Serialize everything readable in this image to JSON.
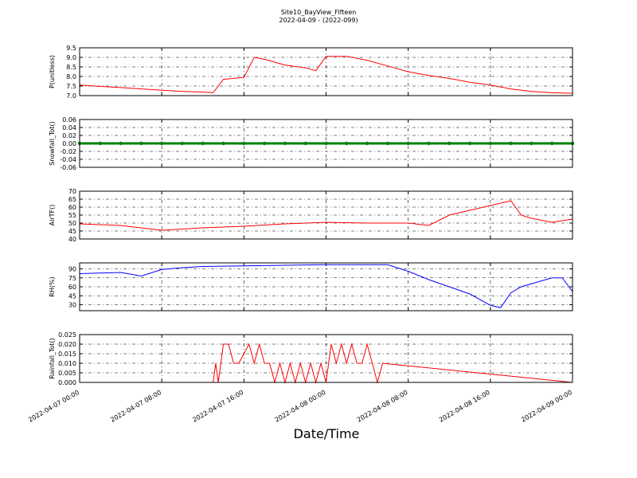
{
  "chart_data": [
    {
      "type": "line",
      "title": "Site10_BayView_Fifteen",
      "subtitle": "2022-04-09 - (2022-099)",
      "ylabel": "P(unitless)",
      "color": "#ff0000",
      "grid": true,
      "xticklabels": false,
      "xlim": [
        "2022-04-07 00:00",
        "2022-04-09 00:00"
      ],
      "xticks": [
        "2022-04-07 00:00",
        "2022-04-07 08:00",
        "2022-04-07 16:00",
        "2022-04-08 00:00",
        "2022-04-08 08:00",
        "2022-04-08 16:00",
        "2022-04-09 00:00"
      ],
      "ylim": [
        7.0,
        9.5
      ],
      "yticks": [
        {
          "value": 7.0,
          "label": "7.0"
        },
        {
          "value": 7.5,
          "label": "7.5"
        },
        {
          "value": 8.0,
          "label": "8.0"
        },
        {
          "value": 8.5,
          "label": "8.5"
        },
        {
          "value": 9.0,
          "label": "9.0"
        },
        {
          "value": 9.5,
          "label": "9.5"
        }
      ],
      "x": [
        "2022-04-07 00:00",
        "2022-04-07 02:00",
        "2022-04-07 04:00",
        "2022-04-07 06:00",
        "2022-04-07 08:00",
        "2022-04-07 10:00",
        "2022-04-07 12:00",
        "2022-04-07 13:00",
        "2022-04-07 14:00",
        "2022-04-07 16:00",
        "2022-04-07 17:00",
        "2022-04-07 18:00",
        "2022-04-07 20:00",
        "2022-04-07 22:00",
        "2022-04-07 23:00",
        "2022-04-08 00:00",
        "2022-04-08 02:00",
        "2022-04-08 04:00",
        "2022-04-08 06:00",
        "2022-04-08 08:00",
        "2022-04-08 10:00",
        "2022-04-08 12:00",
        "2022-04-08 14:00",
        "2022-04-08 16:00",
        "2022-04-08 18:00",
        "2022-04-08 20:00",
        "2022-04-08 22:00",
        "2022-04-09 00:00"
      ],
      "values": [
        7.55,
        7.48,
        7.42,
        7.35,
        7.28,
        7.22,
        7.18,
        7.15,
        7.85,
        7.95,
        9.0,
        8.9,
        8.6,
        8.45,
        8.3,
        9.05,
        9.05,
        8.85,
        8.55,
        8.25,
        8.05,
        7.9,
        7.7,
        7.55,
        7.35,
        7.22,
        7.15,
        7.12
      ]
    },
    {
      "type": "line",
      "ylabel": "Snowfall_Tot()",
      "color": "#008000",
      "marker": "o",
      "grid": true,
      "xticklabels": false,
      "xlim": [
        "2022-04-07 00:00",
        "2022-04-09 00:00"
      ],
      "xticks": [
        "2022-04-07 00:00",
        "2022-04-07 08:00",
        "2022-04-07 16:00",
        "2022-04-08 00:00",
        "2022-04-08 08:00",
        "2022-04-08 16:00",
        "2022-04-09 00:00"
      ],
      "ylim": [
        -0.06,
        0.06
      ],
      "yticks": [
        {
          "value": -0.06,
          "label": "-0.06"
        },
        {
          "value": -0.04,
          "label": "-0.04"
        },
        {
          "value": -0.02,
          "label": "-0.02"
        },
        {
          "value": 0,
          "label": "0.00"
        },
        {
          "value": 0.02,
          "label": "0.02"
        },
        {
          "value": 0.04,
          "label": "0.04"
        },
        {
          "value": 0.06,
          "label": "0.06"
        }
      ],
      "x": [
        "2022-04-07 00:00",
        "2022-04-07 02:00",
        "2022-04-07 04:00",
        "2022-04-07 06:00",
        "2022-04-07 08:00",
        "2022-04-07 10:00",
        "2022-04-07 12:00",
        "2022-04-07 14:00",
        "2022-04-07 16:00",
        "2022-04-07 18:00",
        "2022-04-07 20:00",
        "2022-04-07 22:00",
        "2022-04-08 00:00",
        "2022-04-08 02:00",
        "2022-04-08 04:00",
        "2022-04-08 06:00",
        "2022-04-08 08:00",
        "2022-04-08 10:00",
        "2022-04-08 12:00",
        "2022-04-08 14:00",
        "2022-04-08 16:00",
        "2022-04-08 18:00",
        "2022-04-08 20:00",
        "2022-04-08 22:00",
        "2022-04-09 00:00"
      ],
      "values": [
        0,
        0,
        0,
        0,
        0,
        0,
        0,
        0,
        0,
        0,
        0,
        0,
        0,
        0,
        0,
        0,
        0,
        0,
        0,
        0,
        0,
        0,
        0,
        0,
        0
      ]
    },
    {
      "type": "line",
      "ylabel": "AirTF()",
      "color": "#ff0000",
      "grid": true,
      "xticklabels": false,
      "xlim": [
        "2022-04-07 00:00",
        "2022-04-09 00:00"
      ],
      "xticks": [
        "2022-04-07 00:00",
        "2022-04-07 08:00",
        "2022-04-07 16:00",
        "2022-04-08 00:00",
        "2022-04-08 08:00",
        "2022-04-08 16:00",
        "2022-04-09 00:00"
      ],
      "ylim": [
        40,
        70
      ],
      "yticks": [
        40,
        45,
        50,
        55,
        60,
        65,
        70
      ],
      "x": [
        "2022-04-07 00:00",
        "2022-04-07 04:00",
        "2022-04-07 08:00",
        "2022-04-07 12:00",
        "2022-04-07 16:00",
        "2022-04-07 20:00",
        "2022-04-08 00:00",
        "2022-04-08 04:00",
        "2022-04-08 08:00",
        "2022-04-08 10:00",
        "2022-04-08 12:00",
        "2022-04-08 14:00",
        "2022-04-08 16:00",
        "2022-04-08 18:00",
        "2022-04-08 19:00",
        "2022-04-08 20:00",
        "2022-04-08 22:00",
        "2022-04-09 00:00"
      ],
      "values": [
        49.5,
        48.5,
        45.5,
        47,
        48,
        49.5,
        50.5,
        50,
        50,
        48.5,
        55,
        58,
        61,
        64,
        55,
        53,
        50.5,
        52.5
      ]
    },
    {
      "type": "line",
      "ylabel": "RH(%)",
      "color": "#0000ff",
      "grid": true,
      "xticklabels": false,
      "xlim": [
        "2022-04-07 00:00",
        "2022-04-09 00:00"
      ],
      "xticks": [
        "2022-04-07 00:00",
        "2022-04-07 08:00",
        "2022-04-07 16:00",
        "2022-04-08 00:00",
        "2022-04-08 08:00",
        "2022-04-08 16:00",
        "2022-04-09 00:00"
      ],
      "ylim": [
        20,
        100
      ],
      "yticks": [
        30,
        45,
        60,
        75,
        90
      ],
      "x": [
        "2022-04-07 00:00",
        "2022-04-07 04:00",
        "2022-04-07 06:00",
        "2022-04-07 08:00",
        "2022-04-07 10:00",
        "2022-04-07 12:00",
        "2022-04-07 16:00",
        "2022-04-08 00:00",
        "2022-04-08 06:00",
        "2022-04-08 08:00",
        "2022-04-08 10:00",
        "2022-04-08 12:00",
        "2022-04-08 14:00",
        "2022-04-08 16:00",
        "2022-04-08 17:00",
        "2022-04-08 18:00",
        "2022-04-08 19:00",
        "2022-04-08 20:00",
        "2022-04-08 22:00",
        "2022-04-08 23:00",
        "2022-04-09 00:00"
      ],
      "values": [
        82,
        84,
        78,
        89,
        92,
        94,
        95,
        97,
        97,
        86,
        72,
        60,
        48,
        29,
        25,
        50,
        60,
        65,
        75,
        75,
        52
      ]
    },
    {
      "type": "line",
      "ylabel": "Rainfall_Tot()",
      "xlabel": "Date/Time",
      "color": "#ff0000",
      "grid": true,
      "xticklabels": true,
      "xlim": [
        "2022-04-07 00:00",
        "2022-04-09 00:00"
      ],
      "xticks": [
        "2022-04-07 00:00",
        "2022-04-07 08:00",
        "2022-04-07 16:00",
        "2022-04-08 00:00",
        "2022-04-08 08:00",
        "2022-04-08 16:00",
        "2022-04-09 00:00"
      ],
      "ylim": [
        0,
        0.025
      ],
      "yticks": [
        {
          "value": 0,
          "label": "0.000"
        },
        {
          "value": 0.005,
          "label": "0.005"
        },
        {
          "value": 0.01,
          "label": "0.010"
        },
        {
          "value": 0.015,
          "label": "0.015"
        },
        {
          "value": 0.02,
          "label": "0.020"
        },
        {
          "value": 0.025,
          "label": "0.025"
        }
      ],
      "x": [
        "2022-04-07 00:00",
        "2022-04-07 13:00",
        "2022-04-07 13:15",
        "2022-04-07 13:30",
        "2022-04-07 14:00",
        "2022-04-07 14:30",
        "2022-04-07 15:00",
        "2022-04-07 15:30",
        "2022-04-07 16:30",
        "2022-04-07 17:00",
        "2022-04-07 17:30",
        "2022-04-07 18:00",
        "2022-04-07 18:30",
        "2022-04-07 19:00",
        "2022-04-07 19:30",
        "2022-04-07 20:00",
        "2022-04-07 20:30",
        "2022-04-07 21:00",
        "2022-04-07 21:30",
        "2022-04-07 22:00",
        "2022-04-07 22:30",
        "2022-04-07 23:00",
        "2022-04-07 23:30",
        "2022-04-08 00:00",
        "2022-04-08 00:30",
        "2022-04-08 01:00",
        "2022-04-08 01:30",
        "2022-04-08 02:00",
        "2022-04-08 02:30",
        "2022-04-08 03:00",
        "2022-04-08 03:30",
        "2022-04-08 04:00",
        "2022-04-08 04:30",
        "2022-04-08 05:00",
        "2022-04-08 05:30",
        "2022-04-09 00:00"
      ],
      "values": [
        0,
        0,
        0.01,
        0,
        0.02,
        0.02,
        0.01,
        0.01,
        0.02,
        0.01,
        0.02,
        0.01,
        0.01,
        0,
        0.01,
        0,
        0.01,
        0,
        0.01,
        0,
        0.01,
        0,
        0.01,
        0,
        0.02,
        0.01,
        0.02,
        0.01,
        0.02,
        0.01,
        0.01,
        0.02,
        0.01,
        0,
        0.01,
        0
      ]
    }
  ]
}
